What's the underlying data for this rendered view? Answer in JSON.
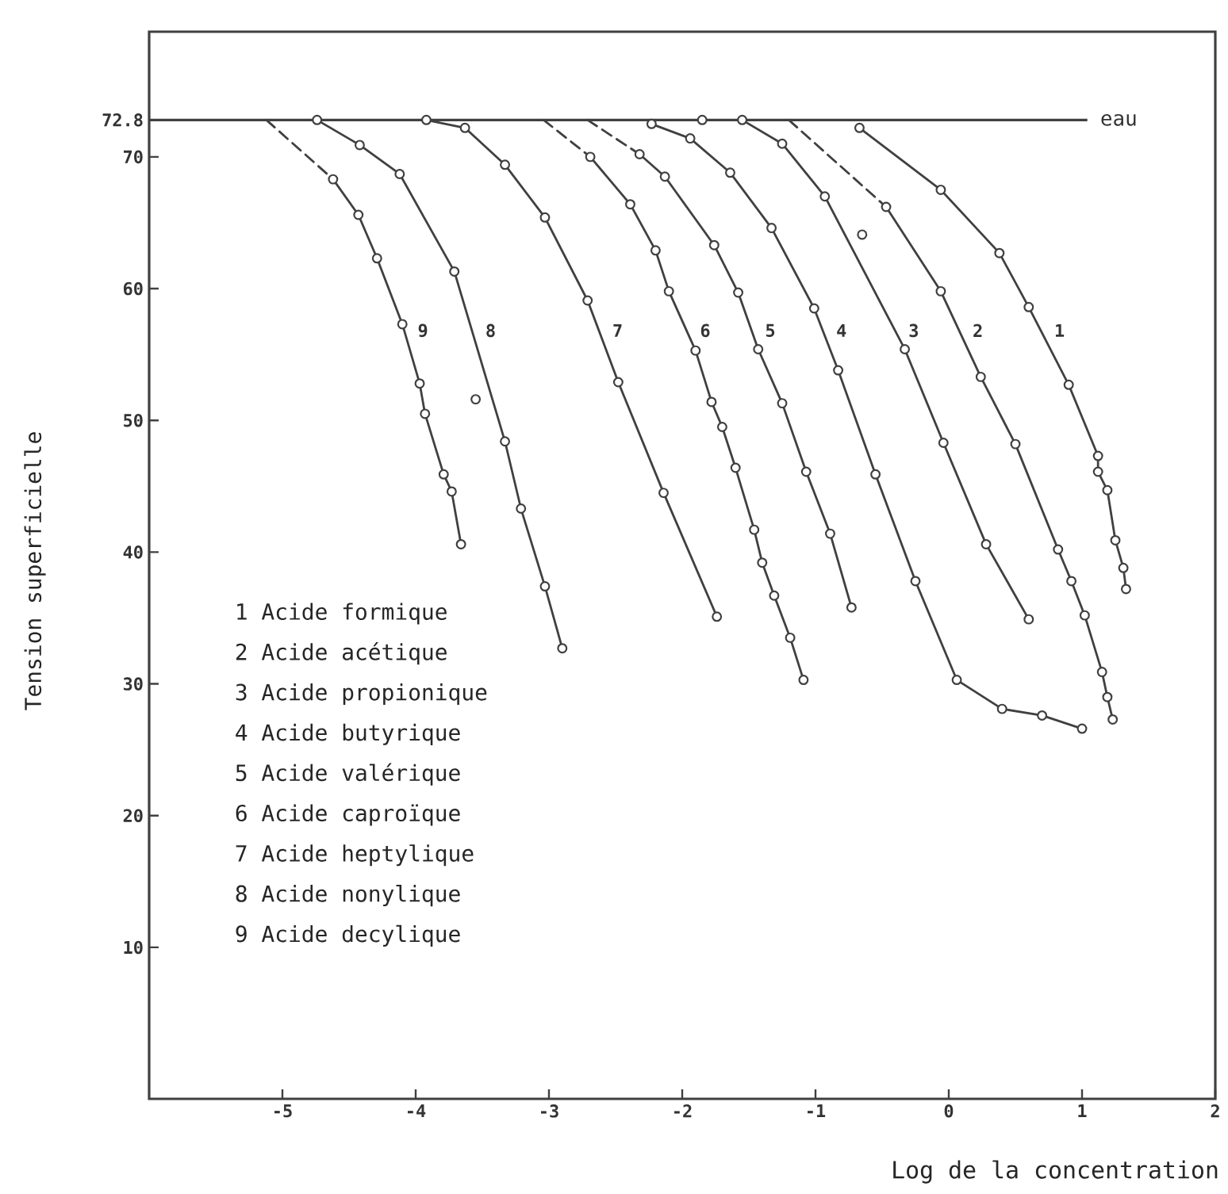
{
  "chart_data": {
    "type": "line",
    "xlabel": "Log de la concentration",
    "ylabel": "Tension superficielle",
    "xlim": [
      -6,
      2
    ],
    "ylim": [
      -1.5,
      79.5
    ],
    "xticks": [
      -5,
      -4,
      -3,
      -2,
      -1,
      0,
      1,
      2
    ],
    "yticks": [
      10,
      20,
      30,
      40,
      50,
      60,
      70,
      {
        "value": 72.8,
        "label": "72.8"
      }
    ],
    "marker": "circle",
    "line_style": "solid",
    "series": [
      {
        "name": "1",
        "color": "#404040",
        "x": [
          -0.67,
          -0.06,
          0.38,
          0.6,
          0.9,
          1.12,
          1.12,
          1.19,
          1.25,
          1.31,
          1.33
        ],
        "values": [
          72.2,
          67.5,
          62.7,
          58.6,
          52.7,
          47.3,
          46.1,
          44.7,
          40.9,
          38.8,
          37.2
        ]
      },
      {
        "name": "2",
        "color": "#404040",
        "x": [
          -0.47,
          -0.06,
          0.24,
          0.5,
          0.82,
          0.92,
          1.02,
          1.15,
          1.19,
          1.23
        ],
        "values": [
          66.2,
          59.8,
          53.3,
          48.2,
          40.2,
          37.8,
          35.2,
          30.9,
          29.0,
          27.3
        ]
      },
      {
        "name": "3",
        "color": "#404040",
        "x": [
          -1.85,
          -1.55,
          -1.25,
          -0.93,
          -0.33,
          -0.04,
          0.28,
          0.6
        ],
        "values": [
          72.8,
          72.8,
          71.0,
          67.0,
          55.4,
          48.3,
          40.6,
          34.9
        ]
      },
      {
        "name": "4",
        "color": "#404040",
        "x": [
          -2.23,
          -1.94,
          -1.64,
          -1.33,
          -1.01,
          -0.83,
          -0.55,
          -0.25,
          0.06,
          0.4,
          0.7,
          1.0
        ],
        "values": [
          72.5,
          71.4,
          68.8,
          64.6,
          58.5,
          53.8,
          45.9,
          37.8,
          30.3,
          28.1,
          27.6,
          26.6
        ]
      },
      {
        "name": "5",
        "color": "#404040",
        "x": [
          -2.32,
          -2.13,
          -1.76,
          -1.58,
          -1.43,
          -1.25,
          -1.07,
          -0.89,
          -0.73
        ],
        "values": [
          70.2,
          68.5,
          63.3,
          59.7,
          55.4,
          51.3,
          46.1,
          41.4,
          35.8
        ]
      },
      {
        "name": "6",
        "color": "#404040",
        "x": [
          -2.69,
          -2.39,
          -2.2,
          -2.1,
          -1.9,
          -1.78,
          -1.7,
          -1.6,
          -1.46,
          -1.4,
          -1.31,
          -1.19,
          -1.09
        ],
        "values": [
          70.0,
          66.4,
          62.9,
          59.8,
          55.3,
          51.4,
          49.5,
          46.4,
          41.7,
          39.2,
          36.7,
          33.5,
          30.3
        ]
      },
      {
        "name": "7",
        "color": "#404040",
        "x": [
          -3.92,
          -3.63,
          -3.33,
          -3.03,
          -2.71,
          -2.48,
          -2.14,
          -1.74
        ],
        "values": [
          72.8,
          72.2,
          69.4,
          65.4,
          59.1,
          52.9,
          44.5,
          35.1
        ]
      },
      {
        "name": "8",
        "color": "#404040",
        "x": [
          -4.74,
          -4.42,
          -4.12,
          -3.71,
          -3.33,
          -3.21,
          -3.03,
          -2.9
        ],
        "values": [
          72.8,
          70.9,
          68.7,
          61.3,
          48.4,
          43.3,
          37.4,
          32.7
        ]
      },
      {
        "name": "9",
        "color": "#404040",
        "x": [
          -4.62,
          -4.43,
          -4.29,
          -4.1,
          -3.97,
          -3.93,
          -3.79,
          -3.73,
          -3.66
        ],
        "values": [
          68.3,
          65.6,
          62.3,
          57.3,
          52.8,
          50.5,
          45.9,
          44.6,
          40.6
        ]
      },
      {
        "color": "#404040",
        "line_style": "dashed",
        "marker": "none",
        "x": [
          -5.12,
          -4.62
        ],
        "values": [
          72.8,
          68.3
        ]
      },
      {
        "color": "#404040",
        "line_style": "dashed",
        "marker": "none",
        "x": [
          -3.04,
          -2.69
        ],
        "values": [
          72.8,
          70.0
        ]
      },
      {
        "color": "#404040",
        "line_style": "dashed",
        "marker": "none",
        "x": [
          -2.71,
          -2.32
        ],
        "values": [
          72.8,
          70.2
        ]
      },
      {
        "color": "#404040",
        "line_style": "dashed",
        "marker": "none",
        "x": [
          -1.2,
          -0.47
        ],
        "values": [
          72.8,
          66.2
        ]
      },
      {
        "type": "scatter",
        "color": "#404040",
        "x": [
          -3.55,
          -0.65
        ],
        "values": [
          51.6,
          64.1
        ]
      }
    ],
    "ref_lines": [
      {
        "axis": "y",
        "value": 72.8,
        "label": "eau"
      }
    ],
    "annotations": [
      "1 Acide formique",
      "2 Acide acétique",
      "3 Acide propionique",
      "4 Acide butyrique",
      "5 Acide valérique",
      "6 Acide caproïque",
      "7 Acide heptylique",
      "8 Acide nonylique",
      "9 Acide decylique"
    ]
  }
}
